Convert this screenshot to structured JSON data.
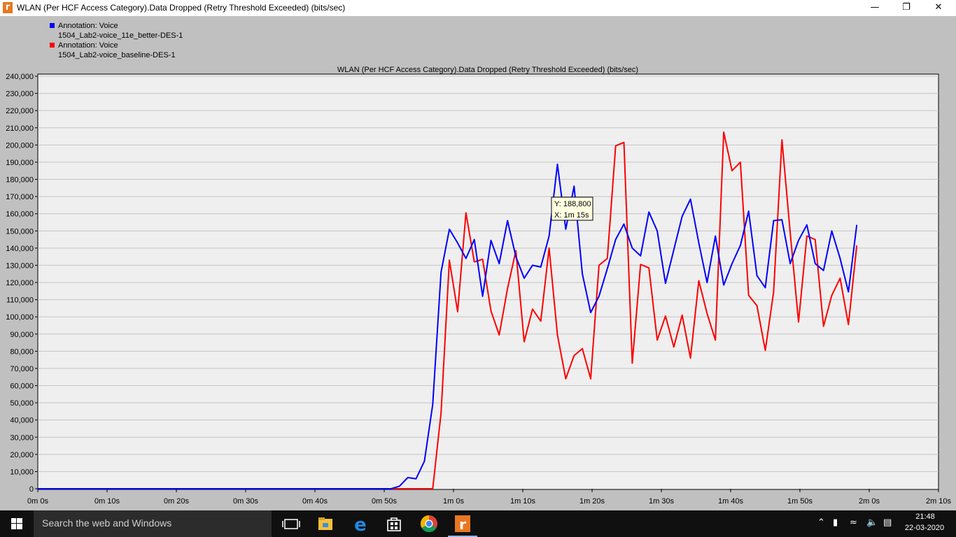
{
  "window": {
    "title": "WLAN (Per HCF Access Category).Data Dropped (Retry Threshold Exceeded) (bits/sec)",
    "app_icon": "riverbed-r-icon",
    "controls": [
      "minimize-icon",
      "restore-icon",
      "close-icon"
    ]
  },
  "legend": [
    {
      "label": "Annotation: Voice",
      "sublabel": "1504_Lab2-voice_11e_better-DES-1",
      "color": "#0000ff"
    },
    {
      "label": "Annotation: Voice",
      "sublabel": "1504_Lab2-voice_baseline-DES-1",
      "color": "#ff0000"
    }
  ],
  "tooltip": {
    "y_text": "Y: 188,800",
    "x_text": "X: 1m 15s"
  },
  "chart_data": {
    "type": "line",
    "title": "WLAN (Per HCF Access Category).Data Dropped (Retry Threshold Exceeded) (bits/sec)",
    "xlabel": "",
    "ylabel": "",
    "xlim": [
      0,
      130
    ],
    "ylim": [
      0,
      240000
    ],
    "yticks": [
      0,
      10000,
      20000,
      30000,
      40000,
      50000,
      60000,
      70000,
      80000,
      90000,
      100000,
      110000,
      120000,
      130000,
      140000,
      150000,
      160000,
      170000,
      180000,
      190000,
      200000,
      210000,
      220000,
      230000,
      240000
    ],
    "ytick_labels": [
      "0",
      "10,000",
      "20,000",
      "30,000",
      "40,000",
      "50,000",
      "60,000",
      "70,000",
      "80,000",
      "90,000",
      "100,000",
      "110,000",
      "120,000",
      "130,000",
      "140,000",
      "150,000",
      "160,000",
      "170,000",
      "180,000",
      "190,000",
      "200,000",
      "210,000",
      "220,000",
      "230,000",
      "240,000"
    ],
    "xticks": [
      0,
      10,
      20,
      30,
      40,
      50,
      60,
      70,
      80,
      90,
      100,
      110,
      120,
      130
    ],
    "xtick_labels": [
      "0m 0s",
      "0m 10s",
      "0m 20s",
      "0m 30s",
      "0m 40s",
      "0m 50s",
      "1m 0s",
      "1m 10s",
      "1m 20s",
      "1m 30s",
      "1m 40s",
      "1m 50s",
      "2m 0s",
      "2m 10s"
    ],
    "grid": true,
    "legend_position": "top-left",
    "series": [
      {
        "name": "Annotation: Voice 1504_Lab2-voice_11e_better-DES-1",
        "color": "#0000ff",
        "x": [
          0,
          51,
          52.2,
          53.4,
          54.6,
          55.8,
          57,
          58.2,
          59.4,
          60.6,
          61.8,
          63,
          64.2,
          65.4,
          66.6,
          67.8,
          69,
          70.2,
          71.4,
          72.6,
          73.8,
          75,
          76.2,
          77.4,
          78.6,
          79.8,
          81,
          82.2,
          83.4,
          84.6,
          85.8,
          87,
          88.2,
          89.4,
          90.6,
          91.8,
          93,
          94.2,
          95.4,
          96.6,
          97.8,
          99,
          100.2,
          101.4,
          102.6,
          103.8,
          105,
          106.2,
          107.4,
          108.6,
          109.8,
          111,
          112.2,
          113.4,
          114.6,
          115.8,
          117,
          118.2
        ],
        "y": [
          0,
          0,
          1500,
          6500,
          5800,
          16000,
          49000,
          126000,
          151000,
          143000,
          134000,
          145000,
          112000,
          144500,
          131000,
          156000,
          135000,
          122500,
          130000,
          129000,
          147000,
          188800,
          151000,
          176000,
          125000,
          102500,
          112000,
          128000,
          145000,
          154000,
          140000,
          135500,
          161000,
          150000,
          119500,
          139000,
          158500,
          168500,
          143000,
          120000,
          147000,
          118500,
          131000,
          141500,
          161500,
          124000,
          117000,
          156000,
          156500,
          131000,
          144500,
          153500,
          131000,
          127000,
          150000,
          134000,
          114500,
          153500
        ]
      },
      {
        "name": "Annotation: Voice 1504_Lab2-voice_baseline-DES-1",
        "color": "#ff0000",
        "x": [
          0,
          57,
          58.2,
          59.4,
          60.6,
          61.8,
          63,
          64.2,
          65.4,
          66.6,
          67.8,
          69,
          70.2,
          71.4,
          72.6,
          73.8,
          75,
          76.2,
          77.4,
          78.6,
          79.8,
          81,
          82.2,
          83.4,
          84.6,
          85.8,
          87,
          88.2,
          89.4,
          90.6,
          91.8,
          93,
          94.2,
          95.4,
          96.6,
          97.8,
          99,
          100.2,
          101.4,
          102.6,
          103.8,
          105,
          106.2,
          107.4,
          108.6,
          109.8,
          111,
          112.2,
          113.4,
          114.6,
          115.8,
          117,
          118.2
        ],
        "y": [
          0,
          0,
          44000,
          133000,
          103000,
          160500,
          132000,
          133500,
          103500,
          89500,
          116500,
          138500,
          85500,
          104500,
          97500,
          140000,
          89500,
          64000,
          77500,
          81500,
          64000,
          130000,
          134000,
          199500,
          201500,
          73000,
          130500,
          128500,
          86500,
          100500,
          82500,
          101000,
          76000,
          121000,
          102000,
          86500,
          207500,
          185000,
          190000,
          112500,
          106500,
          80500,
          114500,
          203000,
          149000,
          97000,
          147000,
          145000,
          94500,
          112500,
          122500,
          95500,
          141500
        ]
      }
    ]
  },
  "taskbar": {
    "search_placeholder": "Search the web and Windows",
    "time": "21:48",
    "date": "22-03-2020",
    "icons": [
      "task-view-icon",
      "file-explorer-icon",
      "edge-icon",
      "store-icon",
      "chrome-icon",
      "riverbed-icon"
    ],
    "tray_icons": [
      "chevron-up-icon",
      "battery-icon",
      "wifi-icon",
      "volume-icon",
      "notification-icon"
    ]
  }
}
